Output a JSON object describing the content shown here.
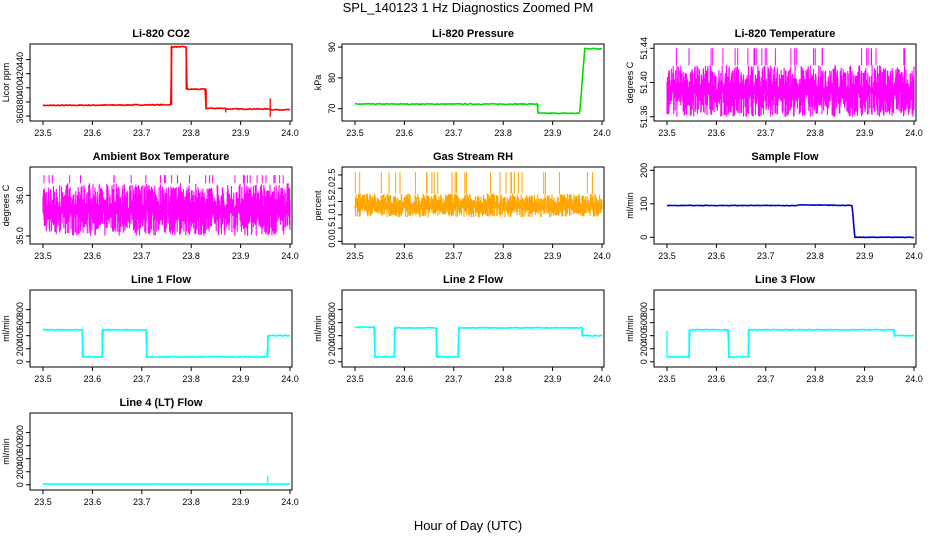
{
  "figure": {
    "title": "SPL_140123 1 Hz Diagnostics Zoomed PM",
    "xlabel": "Hour of Day (UTC)"
  },
  "chart_data": [
    {
      "id": "p1",
      "type": "line",
      "title": "Li-820 CO2",
      "ylabel": "Licor ppm",
      "color": "#ff0000",
      "xlim": [
        23.5,
        24.0
      ],
      "xticks": [
        "23.5",
        "23.6",
        "23.7",
        "23.8",
        "23.9",
        "24.0"
      ],
      "ylim": [
        353,
        462
      ],
      "yticks": [
        "360",
        "380",
        "400",
        "420",
        "440"
      ],
      "noise": 0.6,
      "x": [
        23.5,
        23.76,
        23.76,
        23.79,
        23.79,
        23.83,
        23.83,
        23.87,
        23.87,
        23.96,
        23.96,
        24.0
      ],
      "y": [
        375,
        376,
        458,
        458,
        398,
        398,
        371,
        371,
        370,
        370,
        369,
        369
      ],
      "spikes": [
        {
          "x": 23.76,
          "y": 458,
          "y2": 376
        },
        {
          "x": 23.79,
          "y": 458,
          "y2": 398
        },
        {
          "x": 23.83,
          "y": 398,
          "y2": 371
        },
        {
          "x": 23.96,
          "y": 385,
          "y2": 359
        },
        {
          "x": 23.87,
          "y": 365,
          "y2": 371
        }
      ]
    },
    {
      "id": "p2",
      "type": "line",
      "title": "Li-820 Pressure",
      "ylabel": "kPa",
      "color": "#00dd00",
      "xlim": [
        23.5,
        24.0
      ],
      "xticks": [
        "23.5",
        "23.6",
        "23.7",
        "23.8",
        "23.9",
        "24.0"
      ],
      "ylim": [
        66,
        91
      ],
      "yticks": [
        "70",
        "80",
        "90"
      ],
      "noise": 0.15,
      "x": [
        23.5,
        23.87,
        23.87,
        23.955,
        23.965,
        23.97,
        24.0
      ],
      "y": [
        71.5,
        71.5,
        68.5,
        68.5,
        89.5,
        89.5,
        89.5
      ],
      "spikes": []
    },
    {
      "id": "p3",
      "type": "band",
      "title": "Li-820 Temperature",
      "ylabel": "degrees C",
      "color": "#ff00ff",
      "xlim": [
        23.5,
        24.0
      ],
      "xticks": [
        "23.5",
        "23.6",
        "23.7",
        "23.8",
        "23.9",
        "24.0"
      ],
      "ylim": [
        51.355,
        51.445
      ],
      "yticks": [
        "51.36",
        "51.40",
        "51.44"
      ],
      "band": [
        51.36,
        51.42
      ],
      "spikes_up": 51.44,
      "gaps": [
        23.52,
        23.62,
        23.71,
        23.79,
        23.84,
        23.93
      ]
    },
    {
      "id": "p4",
      "type": "band",
      "title": "Ambient Box Temperature",
      "ylabel": "degrees C",
      "color": "#ff00ff",
      "xlim": [
        23.5,
        24.0
      ],
      "xticks": [
        "23.5",
        "23.6",
        "23.7",
        "23.8",
        "23.9",
        "24.0"
      ],
      "ylim": [
        34.8,
        36.7
      ],
      "yticks": [
        "35.0",
        "36.0"
      ],
      "band": [
        35.0,
        36.3
      ],
      "spikes_up": 36.5,
      "gaps": []
    },
    {
      "id": "p5",
      "type": "band",
      "title": "Gas Stream RH",
      "ylabel": "percent",
      "color": "#ffa500",
      "xlim": [
        23.5,
        24.0
      ],
      "xticks": [
        "23.5",
        "23.6",
        "23.7",
        "23.8",
        "23.9",
        "24.0"
      ],
      "ylim": [
        -0.1,
        2.8
      ],
      "yticks": [
        "0.0",
        "0.5",
        "1.0",
        "1.5",
        "2.0",
        "2.5"
      ],
      "band": [
        0.9,
        1.8
      ],
      "spikes_up": 2.6,
      "gaps": []
    },
    {
      "id": "p6",
      "type": "line",
      "title": "Sample Flow",
      "ylabel": "ml/min",
      "color": "#0000cc",
      "xlim": [
        23.5,
        24.0
      ],
      "xticks": [
        "23.5",
        "23.6",
        "23.7",
        "23.8",
        "23.9",
        "24.0"
      ],
      "ylim": [
        -20,
        210
      ],
      "yticks": [
        "0",
        "100",
        "200"
      ],
      "noise": 0.8,
      "x": [
        23.5,
        23.76,
        23.77,
        23.875,
        23.88,
        24.0
      ],
      "y": [
        95,
        95,
        97,
        95,
        0,
        0
      ],
      "spikes": []
    },
    {
      "id": "p7",
      "type": "line",
      "title": "Line 1 Flow",
      "ylabel": "ml/min",
      "color": "#00ffff",
      "xlim": [
        23.5,
        24.0
      ],
      "xticks": [
        "23.5",
        "23.6",
        "23.7",
        "23.8",
        "23.9",
        "24.0"
      ],
      "ylim": [
        -80,
        1100
      ],
      "yticks": [
        "0",
        "200",
        "400",
        "600",
        "800"
      ],
      "noise": 6,
      "x": [
        23.5,
        23.58,
        23.58,
        23.62,
        23.62,
        23.71,
        23.71,
        23.955,
        23.955,
        24.0
      ],
      "y": [
        490,
        490,
        75,
        75,
        490,
        490,
        75,
        75,
        400,
        400
      ],
      "spikes": []
    },
    {
      "id": "p8",
      "type": "line",
      "title": "Line 2 Flow",
      "ylabel": "ml/min",
      "color": "#00ffff",
      "xlim": [
        23.5,
        24.0
      ],
      "xticks": [
        "23.5",
        "23.6",
        "23.7",
        "23.8",
        "23.9",
        "24.0"
      ],
      "ylim": [
        -80,
        1100
      ],
      "yticks": [
        "0",
        "200",
        "400",
        "600",
        "800"
      ],
      "noise": 6,
      "x": [
        23.5,
        23.54,
        23.54,
        23.58,
        23.58,
        23.665,
        23.665,
        23.71,
        23.71,
        23.96,
        23.96,
        24.0
      ],
      "y": [
        530,
        530,
        75,
        75,
        520,
        520,
        75,
        75,
        520,
        520,
        400,
        400
      ],
      "spikes": []
    },
    {
      "id": "p9",
      "type": "line",
      "title": "Line 3 Flow",
      "ylabel": "ml/min",
      "color": "#00ffff",
      "xlim": [
        23.5,
        24.0
      ],
      "xticks": [
        "23.5",
        "23.6",
        "23.7",
        "23.8",
        "23.9",
        "24.0"
      ],
      "ylim": [
        -80,
        1100
      ],
      "yticks": [
        "0",
        "200",
        "400",
        "600",
        "800"
      ],
      "noise": 6,
      "x": [
        23.5,
        23.545,
        23.545,
        23.625,
        23.625,
        23.665,
        23.665,
        23.96,
        23.96,
        24.0
      ],
      "y": [
        75,
        75,
        490,
        490,
        75,
        75,
        490,
        490,
        400,
        400
      ],
      "spikes": [
        {
          "x": 23.5,
          "y": 470,
          "y2": 75
        }
      ]
    },
    {
      "id": "p10",
      "type": "line",
      "title": "Line 4 (LT) Flow",
      "ylabel": "ml/min",
      "color": "#00ffff",
      "xlim": [
        23.5,
        24.0
      ],
      "xticks": [
        "23.5",
        "23.6",
        "23.7",
        "23.8",
        "23.9",
        "24.0"
      ],
      "ylim": [
        -80,
        1100
      ],
      "yticks": [
        "0",
        "200",
        "400",
        "600",
        "800"
      ],
      "noise": 1,
      "x": [
        23.5,
        24.0
      ],
      "y": [
        10,
        10
      ],
      "spikes": [
        {
          "x": 23.955,
          "y": 140,
          "y2": 10
        }
      ]
    }
  ]
}
